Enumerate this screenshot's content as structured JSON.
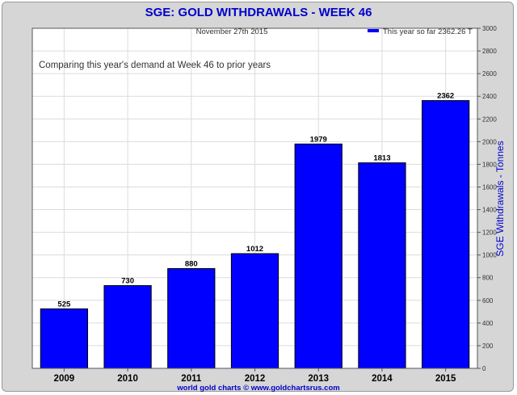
{
  "chart_data": {
    "type": "bar",
    "title": "SGE: GOLD WITHDRAWALS - WEEK 46",
    "date_label": "November 27th 2015",
    "subtitle": "Comparing this year's demand at Week 46 to prior years",
    "legend_label": "This year so far 2362.26 T",
    "legend_position": "top-right",
    "ylabel": "SGE Withdrawals - Tonnes",
    "xlabel": "",
    "footer": "world gold charts © www.goldchartsrus.com",
    "categories": [
      "2009",
      "2010",
      "2011",
      "2012",
      "2013",
      "2014",
      "2015"
    ],
    "values": [
      525,
      730,
      880,
      1012,
      1979,
      1813,
      2362
    ],
    "data_labels": [
      "525",
      "730",
      "880",
      "1012",
      "1979",
      "1813",
      "2362"
    ],
    "ylim": [
      0,
      3000
    ],
    "yticks": [
      "0",
      "200",
      "400",
      "600",
      "800",
      "1000",
      "1200",
      "1400",
      "1600",
      "1800",
      "2000",
      "2200",
      "2400",
      "2600",
      "2800",
      "3000"
    ],
    "y_axis_side": "right",
    "grid": true,
    "colors": {
      "bar": "#0000ff",
      "bar_outline": "#000000",
      "title": "#0000cc",
      "ylabel": "#0000cc",
      "footer": "#0000cc",
      "grid": "#dcdcdc",
      "frame": "#d6d6d6"
    }
  }
}
